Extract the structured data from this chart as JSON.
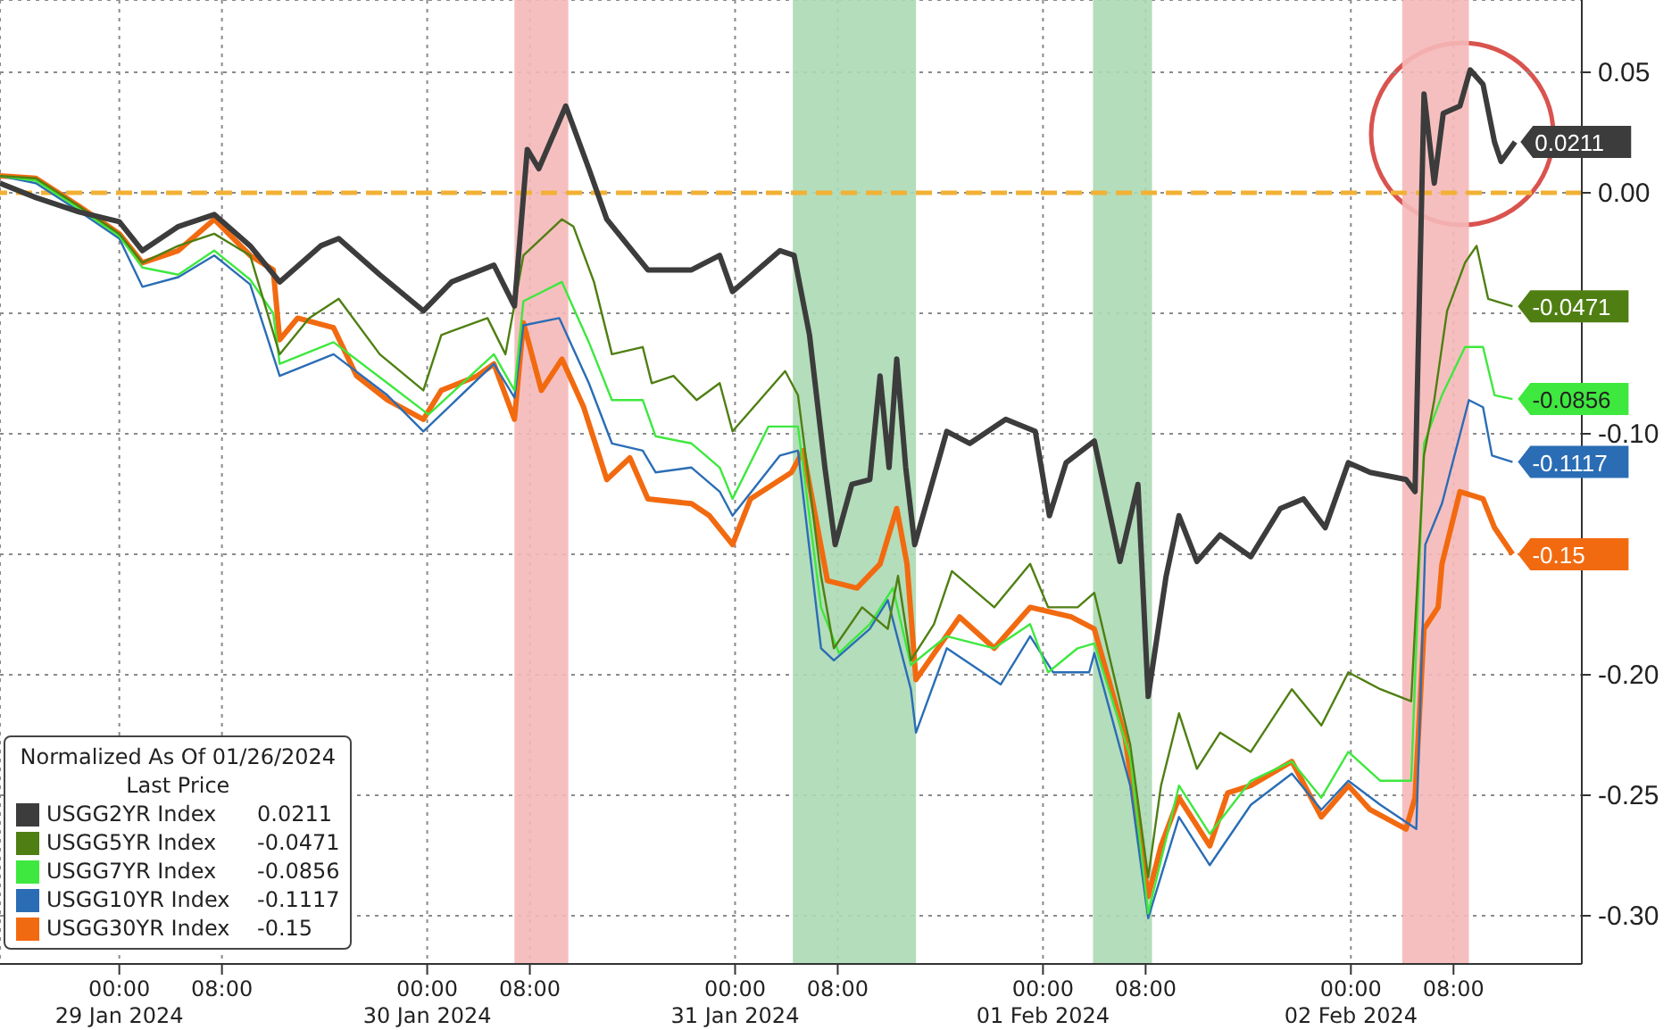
{
  "chart_data": {
    "type": "line",
    "legend_title": "Normalized As Of 01/26/2024\nLast Price",
    "xlim": [
      "2024-01-28T14:42",
      "2024-02-02T18:00"
    ],
    "xticks": [
      {
        "value": "2024-01-29T00:00",
        "label": "00:00\n29 Jan 2024"
      },
      {
        "value": "2024-01-29T08:00",
        "label": "08:00"
      },
      {
        "value": "2024-01-30T00:00",
        "label": "00:00\n30 Jan 2024"
      },
      {
        "value": "2024-01-30T08:00",
        "label": "08:00"
      },
      {
        "value": "2024-01-31T00:00",
        "label": "00:00\n31 Jan 2024"
      },
      {
        "value": "2024-01-31T08:00",
        "label": "08:00"
      },
      {
        "value": "2024-02-01T00:00",
        "label": "00:00\n01 Feb 2024"
      },
      {
        "value": "2024-02-01T08:00",
        "label": "08:00"
      },
      {
        "value": "2024-02-02T00:00",
        "label": "00:00\n02 Feb 2024"
      },
      {
        "value": "2024-02-02T08:00",
        "label": "08:00"
      }
    ],
    "ylim": [
      -0.32,
      0.08
    ],
    "yticks": [
      {
        "value": 0.05,
        "label": "0.05"
      },
      {
        "value": 0,
        "label": "0.00"
      },
      {
        "value": -0.05,
        "label": null
      },
      {
        "value": -0.1,
        "label": "-0.10"
      },
      {
        "value": -0.15,
        "label": null
      },
      {
        "value": -0.2,
        "label": "-0.20"
      },
      {
        "value": -0.25,
        "label": "-0.25"
      },
      {
        "value": -0.3,
        "label": "-0.30"
      }
    ],
    "grid": true,
    "legend": "bottom left",
    "ref_lines": [
      {
        "axis": "y",
        "value": 0,
        "color": "#f2b134",
        "line_style": "dashed"
      }
    ],
    "bands": [
      {
        "axis": "x",
        "from": "2024-01-30T06:48",
        "to": "2024-01-30T11:00",
        "color": "#f5b8b8"
      },
      {
        "axis": "x",
        "from": "2024-01-31T04:30",
        "to": "2024-01-31T14:06",
        "color": "#acd9b4"
      },
      {
        "axis": "x",
        "from": "2024-02-01T03:54",
        "to": "2024-02-01T08:30",
        "color": "#acd9b4"
      },
      {
        "axis": "x",
        "from": "2024-02-02T04:00",
        "to": "2024-02-02T09:12",
        "color": "#f5b8b8"
      }
    ],
    "series": [
      {
        "name": "USGG2YR Index",
        "color": "#3c3c3c",
        "x": [
          "2024-01-28T14:42",
          "2024-01-28T17:30",
          "2024-01-28T20:54",
          "2024-01-29T00:00",
          "2024-01-29T01:48",
          "2024-01-29T04:36",
          "2024-01-29T07:24",
          "2024-01-29T10:12",
          "2024-01-29T12:30",
          "2024-01-29T15:42",
          "2024-01-29T17:06",
          "2024-01-29T20:18",
          "2024-01-29T23:42",
          "2024-01-30T01:54",
          "2024-01-30T05:12",
          "2024-01-30T06:48",
          "2024-01-30T07:48",
          "2024-01-30T08:42",
          "2024-01-30T10:48",
          "2024-01-30T12:36",
          "2024-01-30T14:00",
          "2024-01-30T17:12",
          "2024-01-30T20:36",
          "2024-01-30T22:48",
          "2024-01-30T23:48",
          "2024-01-31T03:30",
          "2024-01-31T04:36",
          "2024-01-31T05:48",
          "2024-01-31T07:00",
          "2024-01-31T07:48",
          "2024-01-31T09:06",
          "2024-01-31T10:30",
          "2024-01-31T11:18",
          "2024-01-31T12:00",
          "2024-01-31T12:36",
          "2024-01-31T13:18",
          "2024-01-31T14:00",
          "2024-01-31T16:30",
          "2024-01-31T18:18",
          "2024-01-31T21:06",
          "2024-01-31T23:24",
          "2024-02-01T00:30",
          "2024-02-01T01:48",
          "2024-02-01T04:00",
          "2024-02-01T06:00",
          "2024-02-01T07:24",
          "2024-02-01T08:12",
          "2024-02-01T09:36",
          "2024-02-01T10:36",
          "2024-02-01T12:00",
          "2024-02-01T13:48",
          "2024-02-01T16:12",
          "2024-02-01T18:30",
          "2024-02-01T20:18",
          "2024-02-01T22:00",
          "2024-02-01T23:48",
          "2024-02-02T01:30",
          "2024-02-02T04:18",
          "2024-02-02T05:00",
          "2024-02-02T05:42",
          "2024-02-02T06:30",
          "2024-02-02T07:12",
          "2024-02-02T08:30",
          "2024-02-02T09:18",
          "2024-02-02T10:18",
          "2024-02-02T11:12",
          "2024-02-02T11:42",
          "2024-02-02T12:48"
        ],
        "values": [
          0.004,
          -0.002,
          -0.008,
          -0.012,
          -0.024,
          -0.014,
          -0.009,
          -0.022,
          -0.037,
          -0.022,
          -0.019,
          -0.034,
          -0.049,
          -0.037,
          -0.03,
          -0.047,
          0.018,
          0.01,
          0.036,
          0.01,
          -0.011,
          -0.032,
          -0.032,
          -0.026,
          -0.041,
          -0.024,
          -0.026,
          -0.059,
          -0.114,
          -0.146,
          -0.121,
          -0.119,
          -0.076,
          -0.114,
          -0.069,
          -0.114,
          -0.146,
          -0.099,
          -0.104,
          -0.094,
          -0.099,
          -0.134,
          -0.112,
          -0.103,
          -0.153,
          -0.121,
          -0.209,
          -0.159,
          -0.134,
          -0.153,
          -0.142,
          -0.151,
          -0.131,
          -0.127,
          -0.139,
          -0.112,
          -0.116,
          -0.119,
          -0.124,
          0.041,
          0.004,
          0.033,
          0.036,
          0.051,
          0.045,
          0.021,
          0.013,
          0.0211
        ],
        "value_labels": [
          null,
          null,
          null,
          null,
          null,
          null,
          null,
          null,
          null,
          null,
          null,
          null,
          null,
          null,
          null,
          null,
          null,
          null,
          null,
          null,
          null,
          null,
          null,
          null,
          null,
          null,
          null,
          null,
          null,
          null,
          null,
          null,
          null,
          null,
          null,
          null,
          null,
          null,
          null,
          null,
          null,
          null,
          null,
          null,
          null,
          null,
          null,
          null,
          null,
          null,
          null,
          null,
          null,
          null,
          null,
          null,
          null,
          null,
          null,
          null,
          null,
          null,
          null,
          null,
          null,
          null,
          null,
          "0.0211"
        ]
      },
      {
        "name": "USGG5YR Index",
        "color": "#4f7f12",
        "x": [
          "2024-01-28T14:42",
          "2024-01-28T17:30",
          "2024-01-28T20:42",
          "2024-01-29T00:00",
          "2024-01-29T01:48",
          "2024-01-29T04:36",
          "2024-01-29T07:24",
          "2024-01-29T10:12",
          "2024-01-29T12:30",
          "2024-01-29T14:48",
          "2024-01-29T17:06",
          "2024-01-29T20:18",
          "2024-01-29T23:42",
          "2024-01-30T01:06",
          "2024-01-30T04:42",
          "2024-01-30T06:06",
          "2024-01-30T07:30",
          "2024-01-30T10:30",
          "2024-01-30T11:24",
          "2024-01-30T13:00",
          "2024-01-30T14:24",
          "2024-01-30T16:48",
          "2024-01-30T17:30",
          "2024-01-30T19:12",
          "2024-01-30T21:00",
          "2024-01-30T22:48",
          "2024-01-30T23:48",
          "2024-01-31T03:54",
          "2024-01-31T04:54",
          "2024-01-31T06:42",
          "2024-01-31T07:42",
          "2024-01-31T09:54",
          "2024-01-31T11:54",
          "2024-01-31T12:42",
          "2024-01-31T13:42",
          "2024-01-31T15:30",
          "2024-01-31T16:54",
          "2024-01-31T20:12",
          "2024-01-31T23:00",
          "2024-02-01T00:24",
          "2024-02-01T02:42",
          "2024-02-01T04:00",
          "2024-02-01T06:48",
          "2024-02-01T08:12",
          "2024-02-01T09:12",
          "2024-02-01T10:36",
          "2024-02-01T12:00",
          "2024-02-01T13:48",
          "2024-02-01T16:12",
          "2024-02-01T19:24",
          "2024-02-01T21:42",
          "2024-02-01T23:48",
          "2024-02-02T02:18",
          "2024-02-02T04:42",
          "2024-02-02T05:42",
          "2024-02-02T06:30",
          "2024-02-02T07:30",
          "2024-02-02T08:54",
          "2024-02-02T09:48",
          "2024-02-02T10:42",
          "2024-02-02T12:36"
        ],
        "values": [
          0.007,
          0.006,
          -0.005,
          -0.017,
          -0.029,
          -0.022,
          -0.017,
          -0.026,
          -0.067,
          -0.052,
          -0.044,
          -0.067,
          -0.082,
          -0.059,
          -0.052,
          -0.067,
          -0.026,
          -0.011,
          -0.014,
          -0.037,
          -0.067,
          -0.064,
          -0.079,
          -0.076,
          -0.086,
          -0.079,
          -0.099,
          -0.074,
          -0.084,
          -0.159,
          -0.189,
          -0.172,
          -0.181,
          -0.159,
          -0.194,
          -0.179,
          -0.157,
          -0.172,
          -0.154,
          -0.172,
          -0.172,
          -0.166,
          -0.229,
          -0.284,
          -0.246,
          -0.216,
          -0.239,
          -0.224,
          -0.232,
          -0.206,
          -0.221,
          -0.199,
          -0.206,
          -0.211,
          -0.109,
          -0.086,
          -0.049,
          -0.029,
          -0.022,
          -0.044,
          -0.0471
        ],
        "value_labels": [
          null,
          null,
          null,
          null,
          null,
          null,
          null,
          null,
          null,
          null,
          null,
          null,
          null,
          null,
          null,
          null,
          null,
          null,
          null,
          null,
          null,
          null,
          null,
          null,
          null,
          null,
          null,
          null,
          null,
          null,
          null,
          null,
          null,
          null,
          null,
          null,
          null,
          null,
          null,
          null,
          null,
          null,
          null,
          null,
          null,
          null,
          null,
          null,
          null,
          null,
          null,
          null,
          null,
          null,
          null,
          null,
          null,
          null,
          null,
          null,
          "-0.0471"
        ]
      },
      {
        "name": "USGG7YR Index",
        "color": "#3ee83e",
        "x": [
          "2024-01-28T14:42",
          "2024-01-28T17:30",
          "2024-01-28T20:42",
          "2024-01-29T00:00",
          "2024-01-29T01:48",
          "2024-01-29T04:36",
          "2024-01-29T07:24",
          "2024-01-29T10:12",
          "2024-01-29T12:00",
          "2024-01-29T12:30",
          "2024-01-29T16:42",
          "2024-01-29T20:54",
          "2024-01-30T00:06",
          "2024-01-30T05:12",
          "2024-01-30T06:48",
          "2024-01-30T07:30",
          "2024-01-30T10:30",
          "2024-01-30T12:36",
          "2024-01-30T14:24",
          "2024-01-30T16:48",
          "2024-01-30T17:48",
          "2024-01-30T20:36",
          "2024-01-30T22:48",
          "2024-01-30T23:48",
          "2024-01-31T02:36",
          "2024-01-31T04:54",
          "2024-01-31T06:42",
          "2024-01-31T08:06",
          "2024-01-31T10:30",
          "2024-01-31T12:18",
          "2024-01-31T13:42",
          "2024-01-31T16:30",
          "2024-01-31T20:12",
          "2024-01-31T23:00",
          "2024-02-01T00:24",
          "2024-02-01T02:42",
          "2024-02-01T04:00",
          "2024-02-01T06:48",
          "2024-02-01T08:12",
          "2024-02-01T10:36",
          "2024-02-01T13:00",
          "2024-02-01T16:12",
          "2024-02-01T19:24",
          "2024-02-01T21:42",
          "2024-02-01T23:48",
          "2024-02-02T02:18",
          "2024-02-02T04:42",
          "2024-02-02T05:42",
          "2024-02-02T07:06",
          "2024-02-02T08:54",
          "2024-02-02T10:18",
          "2024-02-02T11:12",
          "2024-02-02T12:36"
        ],
        "values": [
          0.007,
          0.005,
          -0.006,
          -0.018,
          -0.031,
          -0.034,
          -0.024,
          -0.036,
          -0.05,
          -0.071,
          -0.062,
          -0.079,
          -0.092,
          -0.067,
          -0.082,
          -0.045,
          -0.037,
          -0.062,
          -0.086,
          -0.086,
          -0.101,
          -0.104,
          -0.114,
          -0.127,
          -0.097,
          -0.097,
          -0.172,
          -0.191,
          -0.179,
          -0.164,
          -0.196,
          -0.184,
          -0.189,
          -0.179,
          -0.199,
          -0.189,
          -0.187,
          -0.234,
          -0.299,
          -0.246,
          -0.266,
          -0.244,
          -0.236,
          -0.251,
          -0.232,
          -0.244,
          -0.244,
          -0.104,
          -0.084,
          -0.064,
          -0.064,
          -0.084,
          -0.0856
        ],
        "value_labels": [
          null,
          null,
          null,
          null,
          null,
          null,
          null,
          null,
          null,
          null,
          null,
          null,
          null,
          null,
          null,
          null,
          null,
          null,
          null,
          null,
          null,
          null,
          null,
          null,
          null,
          null,
          null,
          null,
          null,
          null,
          null,
          null,
          null,
          null,
          null,
          null,
          null,
          null,
          null,
          null,
          null,
          null,
          null,
          null,
          null,
          null,
          null,
          null,
          null,
          null,
          null,
          null,
          "-0.0856"
        ]
      },
      {
        "name": "USGG10YR Index",
        "color": "#2a6db5",
        "x": [
          "2024-01-28T14:42",
          "2024-01-28T17:30",
          "2024-01-28T20:42",
          "2024-01-29T00:00",
          "2024-01-29T01:48",
          "2024-01-29T04:36",
          "2024-01-29T07:24",
          "2024-01-29T10:12",
          "2024-01-29T12:30",
          "2024-01-29T16:42",
          "2024-01-29T20:54",
          "2024-01-29T23:42",
          "2024-01-30T05:12",
          "2024-01-30T06:48",
          "2024-01-30T07:30",
          "2024-01-30T10:18",
          "2024-01-30T12:36",
          "2024-01-30T14:24",
          "2024-01-30T16:48",
          "2024-01-30T17:48",
          "2024-01-30T20:36",
          "2024-01-30T22:48",
          "2024-01-30T23:48",
          "2024-01-31T03:30",
          "2024-01-31T04:54",
          "2024-01-31T06:42",
          "2024-01-31T07:42",
          "2024-01-31T10:30",
          "2024-01-31T11:54",
          "2024-01-31T13:42",
          "2024-01-31T14:06",
          "2024-01-31T16:30",
          "2024-01-31T20:42",
          "2024-01-31T23:00",
          "2024-02-01T00:48",
          "2024-02-01T03:36",
          "2024-02-01T04:00",
          "2024-02-01T06:48",
          "2024-02-01T08:12",
          "2024-02-01T10:36",
          "2024-02-01T13:00",
          "2024-02-01T16:12",
          "2024-02-01T19:24",
          "2024-02-01T21:42",
          "2024-02-01T23:48",
          "2024-02-02T02:18",
          "2024-02-02T05:06",
          "2024-02-02T05:48",
          "2024-02-02T07:06",
          "2024-02-02T09:12",
          "2024-02-02T10:18",
          "2024-02-02T11:00",
          "2024-02-02T12:36"
        ],
        "values": [
          0.007,
          0.004,
          -0.007,
          -0.019,
          -0.039,
          -0.035,
          -0.026,
          -0.038,
          -0.076,
          -0.067,
          -0.084,
          -0.099,
          -0.071,
          -0.085,
          -0.055,
          -0.052,
          -0.079,
          -0.104,
          -0.107,
          -0.116,
          -0.114,
          -0.124,
          -0.134,
          -0.109,
          -0.107,
          -0.189,
          -0.194,
          -0.181,
          -0.169,
          -0.206,
          -0.224,
          -0.189,
          -0.204,
          -0.184,
          -0.199,
          -0.199,
          -0.191,
          -0.246,
          -0.301,
          -0.259,
          -0.279,
          -0.254,
          -0.241,
          -0.256,
          -0.244,
          -0.254,
          -0.264,
          -0.146,
          -0.129,
          -0.086,
          -0.089,
          -0.109,
          -0.1117
        ],
        "value_labels": [
          null,
          null,
          null,
          null,
          null,
          null,
          null,
          null,
          null,
          null,
          null,
          null,
          null,
          null,
          null,
          null,
          null,
          null,
          null,
          null,
          null,
          null,
          null,
          null,
          null,
          null,
          null,
          null,
          null,
          null,
          null,
          null,
          null,
          null,
          null,
          null,
          null,
          null,
          null,
          null,
          null,
          null,
          null,
          null,
          null,
          null,
          null,
          null,
          null,
          null,
          null,
          null,
          "-0.1117"
        ]
      },
      {
        "name": "USGG30YR Index",
        "color": "#f26a10",
        "x": [
          "2024-01-28T14:42",
          "2024-01-28T17:30",
          "2024-01-28T20:42",
          "2024-01-29T00:00",
          "2024-01-29T01:48",
          "2024-01-29T04:36",
          "2024-01-29T07:24",
          "2024-01-29T10:12",
          "2024-01-29T12:00",
          "2024-01-29T12:30",
          "2024-01-29T13:54",
          "2024-01-29T16:42",
          "2024-01-29T18:30",
          "2024-01-29T20:54",
          "2024-01-29T23:42",
          "2024-01-30T01:06",
          "2024-01-30T03:54",
          "2024-01-30T05:12",
          "2024-01-30T06:48",
          "2024-01-30T07:30",
          "2024-01-30T08:54",
          "2024-01-30T10:30",
          "2024-01-30T12:12",
          "2024-01-30T14:00",
          "2024-01-30T15:48",
          "2024-01-30T17:12",
          "2024-01-30T20:36",
          "2024-01-30T22:00",
          "2024-01-30T23:48",
          "2024-01-31T01:12",
          "2024-01-31T04:24",
          "2024-01-31T05:18",
          "2024-01-31T07:12",
          "2024-01-31T09:30",
          "2024-01-31T11:18",
          "2024-01-31T12:36",
          "2024-01-31T13:24",
          "2024-01-31T14:06",
          "2024-01-31T17:30",
          "2024-01-31T20:12",
          "2024-01-31T23:00",
          "2024-02-01T02:12",
          "2024-02-01T04:00",
          "2024-02-01T06:24",
          "2024-02-01T08:12",
          "2024-02-01T09:12",
          "2024-02-01T10:36",
          "2024-02-01T13:00",
          "2024-02-01T14:24",
          "2024-02-01T16:12",
          "2024-02-01T19:24",
          "2024-02-01T21:42",
          "2024-02-01T23:48",
          "2024-02-02T01:30",
          "2024-02-02T04:18",
          "2024-02-02T05:00",
          "2024-02-02T05:42",
          "2024-02-02T06:48",
          "2024-02-02T07:06",
          "2024-02-02T08:30",
          "2024-02-02T10:18",
          "2024-02-02T11:12",
          "2024-02-02T12:36"
        ],
        "values": [
          0.007,
          0.006,
          -0.005,
          -0.017,
          -0.029,
          -0.024,
          -0.011,
          -0.026,
          -0.032,
          -0.061,
          -0.052,
          -0.056,
          -0.076,
          -0.086,
          -0.094,
          -0.082,
          -0.076,
          -0.071,
          -0.094,
          -0.054,
          -0.082,
          -0.069,
          -0.089,
          -0.119,
          -0.11,
          -0.127,
          -0.129,
          -0.134,
          -0.146,
          -0.127,
          -0.116,
          -0.107,
          -0.161,
          -0.164,
          -0.154,
          -0.131,
          -0.154,
          -0.202,
          -0.176,
          -0.189,
          -0.172,
          -0.176,
          -0.181,
          -0.226,
          -0.292,
          -0.271,
          -0.251,
          -0.271,
          -0.249,
          -0.246,
          -0.236,
          -0.259,
          -0.246,
          -0.256,
          -0.264,
          -0.251,
          -0.181,
          -0.172,
          -0.154,
          -0.124,
          -0.127,
          -0.139,
          -0.15
        ],
        "value_labels": [
          null,
          null,
          null,
          null,
          null,
          null,
          null,
          null,
          null,
          null,
          null,
          null,
          null,
          null,
          null,
          null,
          null,
          null,
          null,
          null,
          null,
          null,
          null,
          null,
          null,
          null,
          null,
          null,
          null,
          null,
          null,
          null,
          null,
          null,
          null,
          null,
          null,
          null,
          null,
          null,
          null,
          null,
          null,
          null,
          null,
          null,
          null,
          null,
          null,
          null,
          null,
          null,
          null,
          null,
          null,
          null,
          null,
          null,
          null,
          null,
          null,
          null,
          "-0.15"
        ]
      }
    ]
  }
}
